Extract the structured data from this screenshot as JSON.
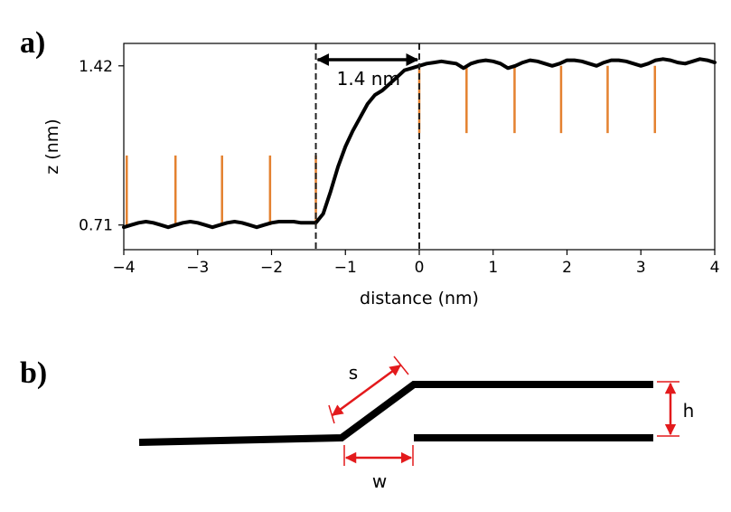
{
  "panels": {
    "a_label": "a)",
    "b_label": "b)"
  },
  "chart_data": {
    "type": "line",
    "xlabel": "distance (nm)",
    "ylabel": "z (nm)",
    "xlim": [
      -4,
      4
    ],
    "ylim": [
      0.6,
      1.52
    ],
    "x_ticks": [
      -4,
      -3,
      -2,
      -1,
      0,
      1,
      2,
      3,
      4
    ],
    "x_tick_labels": [
      "−4",
      "−3",
      "−2",
      "−1",
      "0",
      "1",
      "2",
      "3",
      "4"
    ],
    "y_ticks": [
      0.71,
      1.42
    ],
    "y_tick_labels": [
      "0.71",
      "1.42"
    ],
    "series": [
      {
        "color": "#000000",
        "x": [
          -4.0,
          -3.9,
          -3.8,
          -3.7,
          -3.6,
          -3.5,
          -3.4,
          -3.3,
          -3.2,
          -3.1,
          -3.0,
          -2.9,
          -2.8,
          -2.7,
          -2.6,
          -2.5,
          -2.4,
          -2.3,
          -2.2,
          -2.1,
          -2.0,
          -1.9,
          -1.8,
          -1.7,
          -1.6,
          -1.5,
          -1.4,
          -1.3,
          -1.2,
          -1.1,
          -1.0,
          -0.9,
          -0.8,
          -0.7,
          -0.6,
          -0.5,
          -0.4,
          -0.3,
          -0.2,
          -0.1,
          0.0,
          0.1,
          0.2,
          0.3,
          0.4,
          0.5,
          0.6,
          0.7,
          0.8,
          0.9,
          1.0,
          1.1,
          1.2,
          1.3,
          1.4,
          1.5,
          1.6,
          1.7,
          1.8,
          1.9,
          2.0,
          2.1,
          2.2,
          2.3,
          2.4,
          2.5,
          2.6,
          2.7,
          2.8,
          2.9,
          3.0,
          3.1,
          3.2,
          3.3,
          3.4,
          3.5,
          3.6,
          3.7,
          3.8,
          3.9,
          4.0
        ],
        "y": [
          0.7,
          0.71,
          0.72,
          0.725,
          0.72,
          0.71,
          0.7,
          0.71,
          0.72,
          0.725,
          0.72,
          0.71,
          0.7,
          0.71,
          0.72,
          0.725,
          0.72,
          0.71,
          0.7,
          0.71,
          0.72,
          0.725,
          0.725,
          0.725,
          0.72,
          0.72,
          0.72,
          0.76,
          0.86,
          0.97,
          1.06,
          1.13,
          1.19,
          1.25,
          1.29,
          1.31,
          1.34,
          1.37,
          1.4,
          1.41,
          1.42,
          1.43,
          1.435,
          1.44,
          1.435,
          1.43,
          1.41,
          1.43,
          1.44,
          1.445,
          1.44,
          1.43,
          1.41,
          1.42,
          1.435,
          1.445,
          1.44,
          1.43,
          1.42,
          1.43,
          1.445,
          1.445,
          1.44,
          1.43,
          1.42,
          1.435,
          1.445,
          1.445,
          1.44,
          1.43,
          1.42,
          1.43,
          1.445,
          1.45,
          1.445,
          1.435,
          1.43,
          1.44,
          1.45,
          1.445,
          1.435
        ]
      }
    ],
    "vlines": [
      -1.4,
      0.0
    ],
    "ticks_low_x": [
      -3.96,
      -3.3,
      -2.67,
      -2.02,
      -1.4
    ],
    "ticks_low_range": [
      0.71,
      1.02
    ],
    "ticks_high_x": [
      0.0,
      0.64,
      1.29,
      1.92,
      2.55,
      3.19
    ],
    "ticks_high_range": [
      1.12,
      1.42
    ],
    "annotation": {
      "text": "1.4 nm",
      "from_x": -1.4,
      "to_x": 0.0
    }
  },
  "diagram_b": {
    "s_label": "s",
    "h_label": "h",
    "w_label": "w"
  }
}
